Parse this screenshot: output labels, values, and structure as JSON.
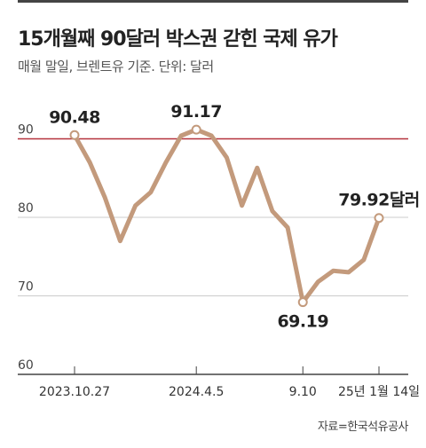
{
  "header": {
    "title": "15개월째 90달러 박스권 갇힌 국제 유가",
    "subtitle": "매월 말일, 브렌트유 기준. 단위: 달러"
  },
  "footer": {
    "source": "자료=한국석유공사"
  },
  "colors": {
    "line": "#c39a7c",
    "ref_line": "#b5323c",
    "grid": "#cccccc",
    "axis": "#444444"
  },
  "chart_data": {
    "type": "line",
    "title": "15개월째 90달러 박스권 갇힌 국제 유가",
    "ylabel": "",
    "xlabel": "",
    "ylim": [
      60,
      95
    ],
    "yticks": [
      60,
      70,
      80,
      90
    ],
    "grid": true,
    "reference_line": 90,
    "x_tick_labels": [
      "2023.10.27",
      "2024.4.5",
      "9.10",
      "25년 1월 14일"
    ],
    "x_tick_index": [
      0,
      8,
      15,
      20
    ],
    "values": [
      90.48,
      87.0,
      82.5,
      77.0,
      81.5,
      83.2,
      87.0,
      90.4,
      91.17,
      90.4,
      87.6,
      81.5,
      86.3,
      80.8,
      78.7,
      69.19,
      71.8,
      73.2,
      73.0,
      74.6,
      79.92
    ],
    "annotations": [
      {
        "index": 0,
        "label": "90.48",
        "pos": "above"
      },
      {
        "index": 8,
        "label": "91.17",
        "pos": "above"
      },
      {
        "index": 15,
        "label": "69.19",
        "pos": "below"
      },
      {
        "index": 20,
        "label": "79.92달러",
        "pos": "above"
      }
    ]
  }
}
